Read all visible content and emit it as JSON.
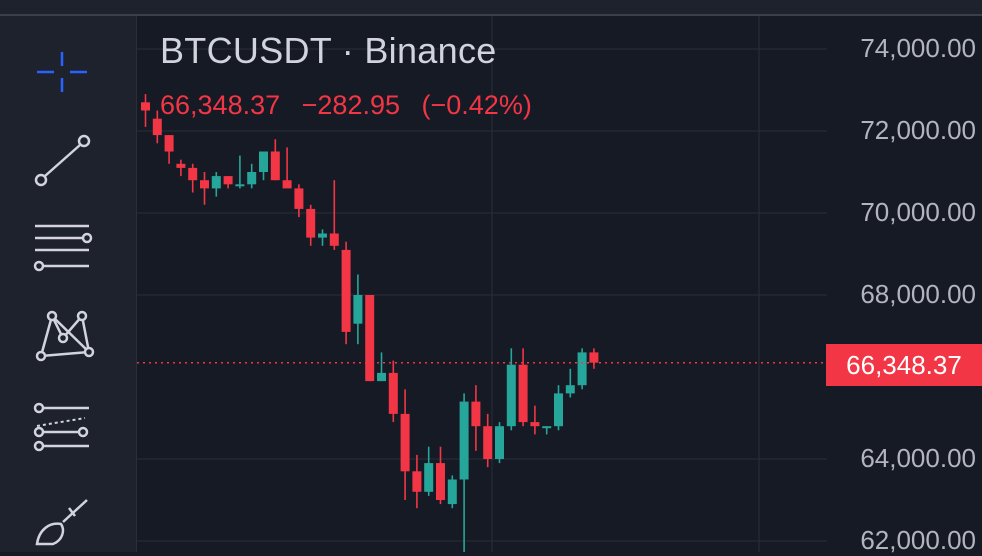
{
  "header": {
    "symbol": "BTCUSDT",
    "separator": "·",
    "exchange": "Binance",
    "last": "66,348.37",
    "change": "−282.95",
    "change_pct": "(−0.42%)"
  },
  "toolbar": {
    "tools": [
      "crosshair-icon",
      "trend-line-icon",
      "fib-retracement-icon",
      "pattern-icon",
      "projection-icon",
      "brush-icon"
    ]
  },
  "price_axis": {
    "labels": [
      "74,000.00",
      "72,000.00",
      "70,000.00",
      "68,000.00",
      "64,000.00",
      "62,000.00"
    ],
    "last_price_label": "66,348.37"
  },
  "colors": {
    "up": "#26a69a",
    "down": "#f23645",
    "background": "#161a25",
    "grid": "#2a2e39",
    "text": "#b2b5be"
  },
  "chart_data": {
    "type": "candlestick",
    "title": "BTCUSDT · Binance",
    "ylim": [
      61800,
      75000
    ],
    "yticks": [
      62000,
      64000,
      68000,
      70000,
      72000,
      74000
    ],
    "last_price": 66348.37,
    "grid": true,
    "candles": [
      {
        "o": 72700,
        "h": 72900,
        "l": 72100,
        "c": 72500
      },
      {
        "o": 72300,
        "h": 72500,
        "l": 71700,
        "c": 71900
      },
      {
        "o": 71900,
        "h": 71900,
        "l": 71200,
        "c": 71500
      },
      {
        "o": 71200,
        "h": 71300,
        "l": 70900,
        "c": 71100
      },
      {
        "o": 71100,
        "h": 71200,
        "l": 70500,
        "c": 70800
      },
      {
        "o": 70800,
        "h": 71000,
        "l": 70200,
        "c": 70600
      },
      {
        "o": 70600,
        "h": 71000,
        "l": 70400,
        "c": 70900
      },
      {
        "o": 70900,
        "h": 70900,
        "l": 70600,
        "c": 70700
      },
      {
        "o": 70700,
        "h": 71400,
        "l": 70600,
        "c": 70700
      },
      {
        "o": 70700,
        "h": 71200,
        "l": 70600,
        "c": 71000
      },
      {
        "o": 71000,
        "h": 71500,
        "l": 70800,
        "c": 71500
      },
      {
        "o": 71500,
        "h": 71800,
        "l": 70800,
        "c": 70800
      },
      {
        "o": 70800,
        "h": 71600,
        "l": 70700,
        "c": 70600
      },
      {
        "o": 70600,
        "h": 70700,
        "l": 69900,
        "c": 70100
      },
      {
        "o": 70100,
        "h": 70200,
        "l": 69200,
        "c": 69400
      },
      {
        "o": 69400,
        "h": 69600,
        "l": 69200,
        "c": 69500
      },
      {
        "o": 69500,
        "h": 70800,
        "l": 69100,
        "c": 69200
      },
      {
        "o": 69100,
        "h": 69300,
        "l": 66800,
        "c": 67100
      },
      {
        "o": 67300,
        "h": 68500,
        "l": 66800,
        "c": 68000
      },
      {
        "o": 68000,
        "h": 68000,
        "l": 65900,
        "c": 65900
      },
      {
        "o": 65900,
        "h": 66600,
        "l": 65900,
        "c": 66100
      },
      {
        "o": 66100,
        "h": 66400,
        "l": 64900,
        "c": 65100
      },
      {
        "o": 65100,
        "h": 65700,
        "l": 63000,
        "c": 63700
      },
      {
        "o": 63700,
        "h": 64100,
        "l": 62800,
        "c": 63200
      },
      {
        "o": 63200,
        "h": 64300,
        "l": 63100,
        "c": 63900
      },
      {
        "o": 63900,
        "h": 64300,
        "l": 62900,
        "c": 63000
      },
      {
        "o": 62900,
        "h": 63600,
        "l": 62800,
        "c": 63500
      },
      {
        "o": 63500,
        "h": 65600,
        "l": 61700,
        "c": 65400
      },
      {
        "o": 65400,
        "h": 65800,
        "l": 64200,
        "c": 64800
      },
      {
        "o": 64800,
        "h": 65100,
        "l": 63800,
        "c": 64000
      },
      {
        "o": 64000,
        "h": 64900,
        "l": 63900,
        "c": 64800
      },
      {
        "o": 64800,
        "h": 66700,
        "l": 64700,
        "c": 66300
      },
      {
        "o": 66300,
        "h": 66700,
        "l": 64800,
        "c": 64900
      },
      {
        "o": 64900,
        "h": 65300,
        "l": 64600,
        "c": 64800
      },
      {
        "o": 64800,
        "h": 64800,
        "l": 64600,
        "c": 64800
      },
      {
        "o": 64800,
        "h": 65800,
        "l": 64700,
        "c": 65600
      },
      {
        "o": 65600,
        "h": 66200,
        "l": 65500,
        "c": 65800
      },
      {
        "o": 65800,
        "h": 66700,
        "l": 65700,
        "c": 66600
      },
      {
        "o": 66600,
        "h": 66700,
        "l": 66200,
        "c": 66350
      }
    ]
  }
}
